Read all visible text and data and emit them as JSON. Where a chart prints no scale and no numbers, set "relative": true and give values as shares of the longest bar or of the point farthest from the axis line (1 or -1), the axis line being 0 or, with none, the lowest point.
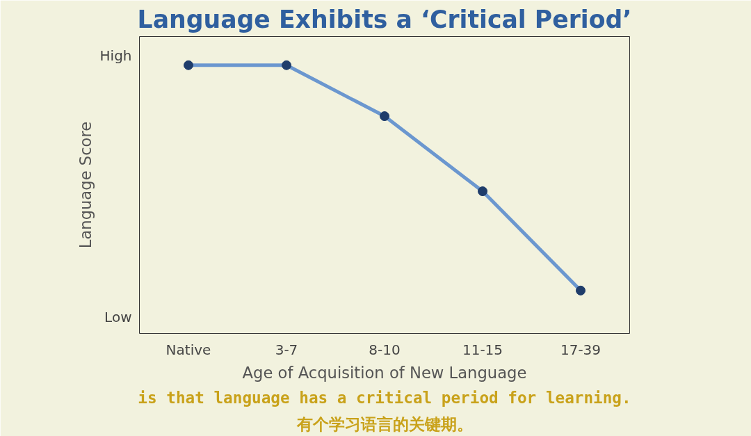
{
  "chart_data": {
    "type": "line",
    "title": "Language Exhibits a ‘Critical Period’",
    "xlabel": "Age of Acquisition of New Language",
    "ylabel": "Language Score",
    "categories": [
      "Native",
      "3-7",
      "8-10",
      "11-15",
      "17-39"
    ],
    "series": [
      {
        "color": "#6b97cf",
        "values": [
          1,
          1,
          0.81,
          0.53,
          0.16
        ]
      }
    ],
    "relative": true,
    "marker": "circle",
    "annotations": [
      "High",
      "Low",
      "is that language has a critical period for learning.",
      "有个学习语言的关键期。"
    ]
  }
}
